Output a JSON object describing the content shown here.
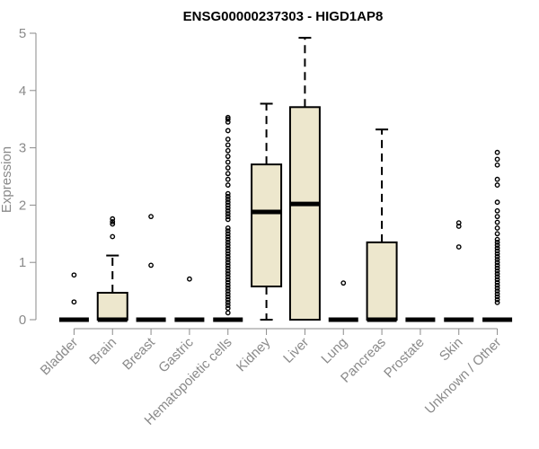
{
  "chart_data": {
    "type": "boxplot",
    "title": "ENSG00000237303 - HIGD1AP8",
    "xlabel": "",
    "ylabel": "Expression",
    "ylim": [
      0,
      5
    ],
    "yticks": [
      0,
      1,
      2,
      3,
      4,
      5
    ],
    "grid": false,
    "legend": "none",
    "colors": {
      "box_fill": "#ede7cd",
      "stroke": "#000000",
      "axis": "#8a8a8a"
    },
    "categories": [
      "Bladder",
      "Brain",
      "Breast",
      "Gastric",
      "Hematopoietic cells",
      "Kidney",
      "Liver",
      "Lung",
      "Pancreas",
      "Prostate",
      "Skin",
      "Unknown / Other"
    ],
    "boxes": [
      {
        "category": "Bladder",
        "min": 0,
        "q1": 0,
        "median": 0,
        "q3": 0,
        "max": 0,
        "outliers": [
          0.31,
          0.78
        ]
      },
      {
        "category": "Brain",
        "min": 0,
        "q1": 0,
        "median": 0,
        "q3": 0.47,
        "max": 1.12,
        "outliers": [
          1.45,
          1.67,
          1.71,
          1.76
        ]
      },
      {
        "category": "Breast",
        "min": 0,
        "q1": 0,
        "median": 0,
        "q3": 0,
        "max": 0,
        "outliers": [
          0.95,
          1.8
        ]
      },
      {
        "category": "Gastric",
        "min": 0,
        "q1": 0,
        "median": 0,
        "q3": 0,
        "max": 0,
        "outliers": [
          0.71
        ]
      },
      {
        "category": "Hematopoietic cells",
        "min": 0,
        "q1": 0,
        "median": 0,
        "q3": 0,
        "max": 0,
        "outliers": [
          0.12,
          0.2,
          0.25,
          0.3,
          0.35,
          0.4,
          0.45,
          0.5,
          0.55,
          0.6,
          0.65,
          0.7,
          0.75,
          0.8,
          0.85,
          0.9,
          0.95,
          1.0,
          1.05,
          1.1,
          1.15,
          1.2,
          1.25,
          1.3,
          1.35,
          1.4,
          1.45,
          1.5,
          1.55,
          1.6,
          1.75,
          1.8,
          1.85,
          1.9,
          1.95,
          2.0,
          2.05,
          2.1,
          2.15,
          2.2,
          2.35,
          2.45,
          2.55,
          2.65,
          2.75,
          2.85,
          2.95,
          3.05,
          3.15,
          3.3,
          3.45,
          3.5,
          3.53
        ]
      },
      {
        "category": "Kidney",
        "min": 0,
        "q1": 0.58,
        "median": 1.88,
        "q3": 2.71,
        "max": 3.77,
        "outliers": []
      },
      {
        "category": "Liver",
        "min": 0,
        "q1": 0,
        "median": 2.02,
        "q3": 3.71,
        "max": 4.92,
        "outliers": []
      },
      {
        "category": "Lung",
        "min": 0,
        "q1": 0,
        "median": 0,
        "q3": 0,
        "max": 0,
        "outliers": [
          0.64
        ]
      },
      {
        "category": "Pancreas",
        "min": 0,
        "q1": 0,
        "median": 0,
        "q3": 1.35,
        "max": 3.32,
        "outliers": []
      },
      {
        "category": "Prostate",
        "min": 0,
        "q1": 0,
        "median": 0,
        "q3": 0,
        "max": 0,
        "outliers": []
      },
      {
        "category": "Skin",
        "min": 0,
        "q1": 0,
        "median": 0,
        "q3": 0,
        "max": 0,
        "outliers": [
          1.27,
          1.63,
          1.69
        ]
      },
      {
        "category": "Unknown / Other",
        "min": 0,
        "q1": 0,
        "median": 0,
        "q3": 0,
        "max": 0,
        "outliers": [
          0.3,
          0.35,
          0.4,
          0.45,
          0.5,
          0.55,
          0.6,
          0.65,
          0.7,
          0.75,
          0.8,
          0.85,
          0.9,
          0.95,
          1.0,
          1.05,
          1.1,
          1.15,
          1.2,
          1.25,
          1.3,
          1.35,
          1.4,
          1.5,
          1.6,
          1.7,
          1.8,
          1.9,
          2.05,
          2.35,
          2.45,
          2.7,
          2.8,
          2.92
        ]
      }
    ]
  }
}
